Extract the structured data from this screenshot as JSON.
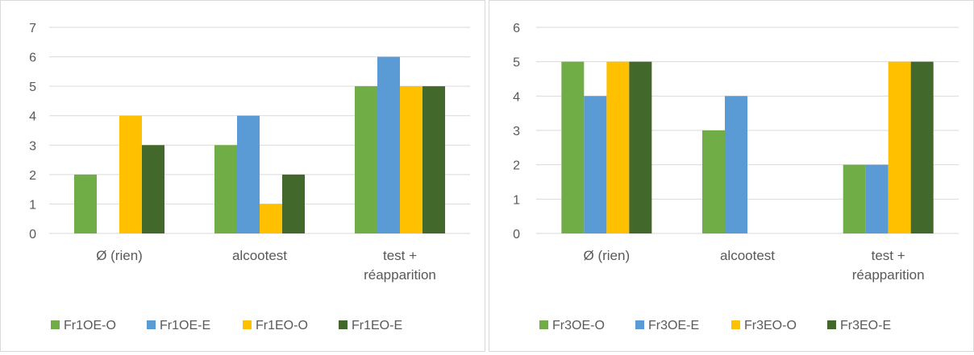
{
  "colors": {
    "green": "#70ad47",
    "blue": "#5b9bd5",
    "yellow": "#ffc000",
    "darkgreen": "#43682b",
    "grid": "#d9d9d9",
    "text": "#595959"
  },
  "chart_data": [
    {
      "type": "bar",
      "title": "",
      "xlabel": "",
      "ylabel": "",
      "ylim": [
        0,
        7
      ],
      "yticks": [
        "0",
        "1",
        "2",
        "3",
        "4",
        "5",
        "6",
        "7"
      ],
      "grid": true,
      "legend_position": "bottom",
      "categories": [
        [
          "Ø (rien)"
        ],
        [
          "alcootest"
        ],
        [
          "test +",
          "réapparition"
        ]
      ],
      "series": [
        {
          "name": "Fr1OE-O",
          "color": "#70ad47",
          "values": [
            2,
            3,
            5
          ]
        },
        {
          "name": "Fr1OE-E",
          "color": "#5b9bd5",
          "values": [
            0,
            4,
            6
          ]
        },
        {
          "name": "Fr1EO-O",
          "color": "#ffc000",
          "values": [
            4,
            1,
            5
          ]
        },
        {
          "name": "Fr1EO-E",
          "color": "#43682b",
          "values": [
            3,
            2,
            5
          ]
        }
      ]
    },
    {
      "type": "bar",
      "title": "",
      "xlabel": "",
      "ylabel": "",
      "ylim": [
        0,
        6
      ],
      "yticks": [
        "0",
        "1",
        "2",
        "3",
        "4",
        "5",
        "6"
      ],
      "grid": true,
      "legend_position": "bottom",
      "categories": [
        [
          "Ø (rien)"
        ],
        [
          "alcootest"
        ],
        [
          "test +",
          "réapparition"
        ]
      ],
      "series": [
        {
          "name": "Fr3OE-O",
          "color": "#70ad47",
          "values": [
            5,
            3,
            2
          ]
        },
        {
          "name": "Fr3OE-E",
          "color": "#5b9bd5",
          "values": [
            4,
            4,
            2
          ]
        },
        {
          "name": "Fr3EO-O",
          "color": "#ffc000",
          "values": [
            5,
            0,
            5
          ]
        },
        {
          "name": "Fr3EO-E",
          "color": "#43682b",
          "values": [
            5,
            0,
            5
          ]
        }
      ]
    }
  ]
}
